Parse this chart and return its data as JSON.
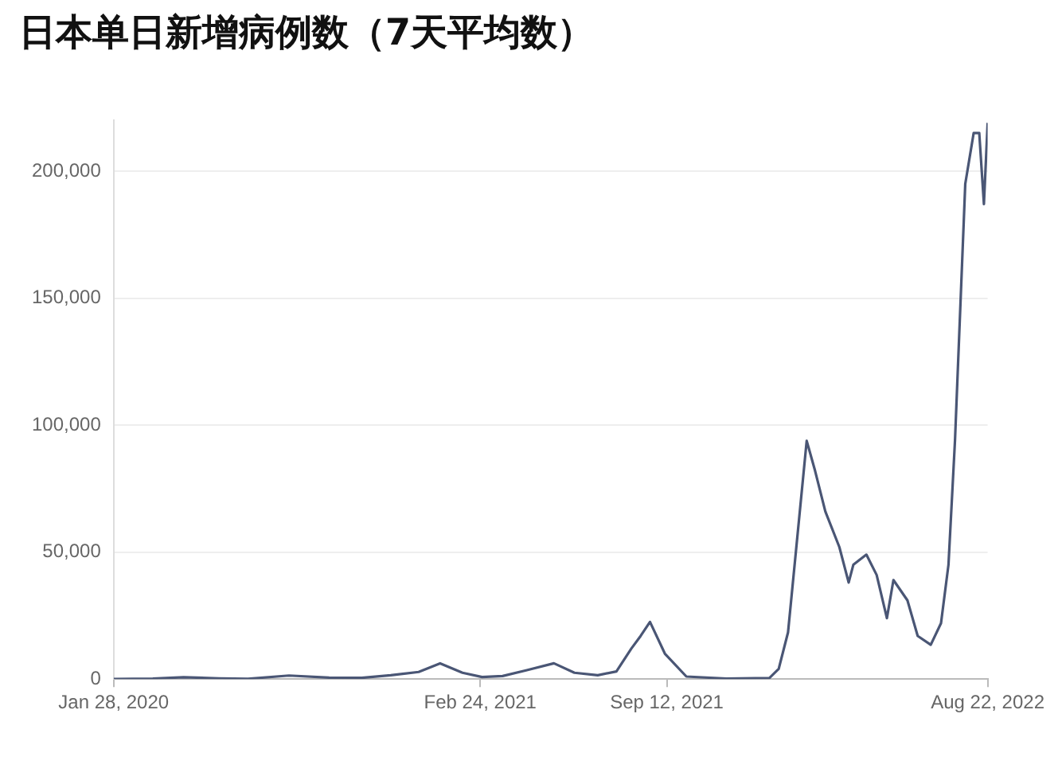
{
  "chart_data": {
    "type": "line",
    "title": "日本单日新增病例数（7天平均数）",
    "x": [
      "2020-01-28",
      "2020-03-10",
      "2020-04-12",
      "2020-05-20",
      "2020-06-20",
      "2020-08-03",
      "2020-09-15",
      "2020-10-20",
      "2020-11-20",
      "2020-12-20",
      "2021-01-12",
      "2021-02-05",
      "2021-02-26",
      "2021-03-20",
      "2021-04-15",
      "2021-05-14",
      "2021-06-05",
      "2021-06-30",
      "2021-07-20",
      "2021-08-05",
      "2021-08-15",
      "2021-08-25",
      "2021-09-10",
      "2021-10-03",
      "2021-11-15",
      "2021-12-31",
      "2022-01-10",
      "2022-01-20",
      "2022-02-09",
      "2022-02-18",
      "2022-03-01",
      "2022-03-16",
      "2022-03-26",
      "2022-03-31",
      "2022-04-14",
      "2022-04-25",
      "2022-05-06",
      "2022-05-13",
      "2022-05-28",
      "2022-06-08",
      "2022-06-22",
      "2022-07-03",
      "2022-07-11",
      "2022-07-18",
      "2022-07-29",
      "2022-08-07",
      "2022-08-13",
      "2022-08-18",
      "2022-08-22"
    ],
    "series": [
      {
        "color": "#4a5675",
        "values": [
          0,
          200,
          700,
          300,
          100,
          1400,
          600,
          500,
          1500,
          2800,
          6200,
          2500,
          800,
          1200,
          3500,
          6200,
          2500,
          1500,
          3000,
          12000,
          17000,
          22500,
          10000,
          1000,
          200,
          400,
          4000,
          18400,
          93800,
          82000,
          66000,
          52000,
          38000,
          45000,
          49000,
          41000,
          24000,
          39000,
          31000,
          17000,
          13500,
          22000,
          45000,
          94000,
          195000,
          215000,
          215000,
          187000,
          219000
        ]
      }
    ],
    "xlim": [
      "2020-01-28",
      "2022-08-22"
    ],
    "xticks": [
      {
        "value": "2020-01-28",
        "label": "Jan 28, 2020"
      },
      {
        "value": "2021-02-24",
        "label": "Feb 24, 2021"
      },
      {
        "value": "2021-09-12",
        "label": "Sep 12, 2021"
      },
      {
        "value": "2022-08-22",
        "label": "Aug 22, 2022"
      }
    ],
    "ylim": [
      0,
      220000
    ],
    "yticks": [
      0,
      {
        "value": 50000,
        "label": "50,000"
      },
      {
        "value": 100000,
        "label": "100,000"
      },
      {
        "value": 150000,
        "label": "150,000"
      },
      {
        "value": 200000,
        "label": "200,000"
      }
    ],
    "grid": "y",
    "legend": false,
    "marker": "none",
    "line_style": "solid"
  }
}
